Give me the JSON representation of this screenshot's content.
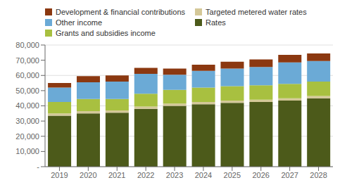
{
  "chart_data": {
    "type": "bar",
    "stacked": true,
    "grid": true,
    "legend": "top",
    "categories": [
      "2019",
      "2020",
      "2021",
      "2022",
      "2023",
      "2024",
      "2025",
      "2026",
      "2027",
      "2028"
    ],
    "series": [
      {
        "name": "Rates",
        "color": "#4c5a1a",
        "values": [
          33500,
          35000,
          35500,
          38000,
          40000,
          41000,
          42000,
          42500,
          43500,
          45000
        ]
      },
      {
        "name": "Targeted metered water rates",
        "color": "#d4c898",
        "values": [
          1500,
          1500,
          1500,
          1500,
          1500,
          1500,
          1500,
          1500,
          1500,
          1500
        ]
      },
      {
        "name": "Grants and subsidies income",
        "color": "#a8c040",
        "values": [
          7500,
          8000,
          7500,
          8500,
          9000,
          9500,
          9500,
          9500,
          9500,
          9500
        ]
      },
      {
        "name": "Other income",
        "color": "#6baad6",
        "values": [
          9500,
          11000,
          11500,
          13000,
          10000,
          11000,
          11500,
          12000,
          14000,
          13500
        ]
      },
      {
        "name": "Development & financial contributions",
        "color": "#8b3810",
        "values": [
          3000,
          4000,
          4000,
          4000,
          4000,
          4000,
          4500,
          5000,
          5000,
          5000
        ]
      }
    ],
    "ylim": [
      0,
      80000
    ],
    "yticks": [
      {
        "value": 0,
        "label": "-"
      },
      {
        "value": 10000,
        "label": "10,000"
      },
      {
        "value": 20000,
        "label": "20,000"
      },
      {
        "value": 30000,
        "label": "30,000"
      },
      {
        "value": 40000,
        "label": "40,000"
      },
      {
        "value": 50000,
        "label": "50,000"
      },
      {
        "value": 60000,
        "label": "60,000"
      },
      {
        "value": 70000,
        "label": "70,000"
      },
      {
        "value": 80000,
        "label": "80,000"
      }
    ]
  }
}
